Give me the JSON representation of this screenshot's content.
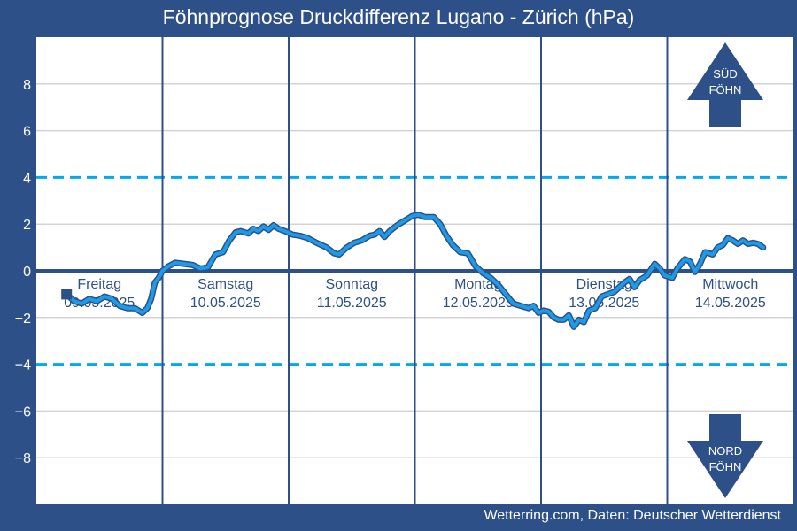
{
  "title": "Föhnprognose Druckdifferenz Lugano - Zürich (hPa)",
  "source": "Wetterring.com, Daten: Deutscher Wetterdienst",
  "colors": {
    "background": "#2d5088",
    "plot_background": "#ffffff",
    "series_line": "#1e9be6",
    "series_outline": "#2d5088",
    "threshold_line": "#00aaee",
    "zero_line": "#2d5088",
    "grid": "#d3d3d3"
  },
  "indicators": {
    "sued": {
      "line1": "SÜD",
      "line2": "FÖHN",
      "icon": "arrow-up-icon"
    },
    "nord": {
      "line1": "NORD",
      "line2": "FÖHN",
      "icon": "arrow-down-icon"
    }
  },
  "chart_data": {
    "type": "line",
    "title": "Föhnprognose Druckdifferenz Lugano - Zürich (hPa)",
    "xlabel": "",
    "ylabel": "",
    "ylim": [
      -10,
      10
    ],
    "xlim": [
      0,
      6
    ],
    "yticks": [
      8,
      6,
      4,
      2,
      0,
      -2,
      -4,
      -6,
      -8
    ],
    "ytick_labels": [
      "8",
      "6",
      "4",
      "2",
      "0",
      "−2",
      "−4",
      "−6",
      "−8"
    ],
    "grid": true,
    "thresholds": [
      4,
      -4
    ],
    "days": [
      {
        "name": "Freitag",
        "date": "09.05.2025"
      },
      {
        "name": "Samstag",
        "date": "10.05.2025"
      },
      {
        "name": "Sonntag",
        "date": "11.05.2025"
      },
      {
        "name": "Montag",
        "date": "12.05.2025"
      },
      {
        "name": "Dienstag",
        "date": "13.05.2025"
      },
      {
        "name": "Mittwoch",
        "date": "14.05.2025"
      }
    ],
    "series": [
      {
        "start_marker": [
          0.24,
          -1.0
        ],
        "points": [
          [
            0.24,
            -1.0
          ],
          [
            0.3,
            -1.3
          ],
          [
            0.36,
            -1.4
          ],
          [
            0.42,
            -1.2
          ],
          [
            0.48,
            -1.3
          ],
          [
            0.54,
            -1.1
          ],
          [
            0.6,
            -1.2
          ],
          [
            0.66,
            -1.5
          ],
          [
            0.72,
            -1.6
          ],
          [
            0.78,
            -1.6
          ],
          [
            0.84,
            -1.8
          ],
          [
            0.88,
            -1.6
          ],
          [
            0.91,
            -1.2
          ],
          [
            0.94,
            -0.5
          ],
          [
            0.97,
            -0.3
          ],
          [
            1.0,
            0.0
          ],
          [
            1.05,
            0.2
          ],
          [
            1.1,
            0.35
          ],
          [
            1.17,
            0.3
          ],
          [
            1.24,
            0.25
          ],
          [
            1.3,
            0.1
          ],
          [
            1.36,
            0.15
          ],
          [
            1.42,
            0.7
          ],
          [
            1.48,
            0.8
          ],
          [
            1.53,
            1.3
          ],
          [
            1.58,
            1.65
          ],
          [
            1.62,
            1.7
          ],
          [
            1.68,
            1.6
          ],
          [
            1.72,
            1.8
          ],
          [
            1.76,
            1.7
          ],
          [
            1.8,
            1.9
          ],
          [
            1.84,
            1.75
          ],
          [
            1.88,
            1.95
          ],
          [
            1.92,
            1.8
          ],
          [
            1.97,
            1.7
          ],
          [
            2.03,
            1.55
          ],
          [
            2.09,
            1.5
          ],
          [
            2.15,
            1.4
          ],
          [
            2.22,
            1.2
          ],
          [
            2.3,
            1.0
          ],
          [
            2.36,
            0.75
          ],
          [
            2.4,
            0.7
          ],
          [
            2.46,
            1.0
          ],
          [
            2.52,
            1.2
          ],
          [
            2.58,
            1.3
          ],
          [
            2.64,
            1.5
          ],
          [
            2.68,
            1.55
          ],
          [
            2.72,
            1.7
          ],
          [
            2.76,
            1.45
          ],
          [
            2.8,
            1.7
          ],
          [
            2.86,
            1.95
          ],
          [
            2.92,
            2.15
          ],
          [
            2.98,
            2.35
          ],
          [
            3.03,
            2.4
          ],
          [
            3.08,
            2.3
          ],
          [
            3.15,
            2.3
          ],
          [
            3.2,
            2.0
          ],
          [
            3.25,
            1.5
          ],
          [
            3.3,
            1.1
          ],
          [
            3.36,
            0.8
          ],
          [
            3.42,
            0.75
          ],
          [
            3.48,
            0.2
          ],
          [
            3.54,
            -0.1
          ],
          [
            3.6,
            -0.3
          ],
          [
            3.66,
            -0.6
          ],
          [
            3.72,
            -1.0
          ],
          [
            3.78,
            -1.4
          ],
          [
            3.84,
            -1.5
          ],
          [
            3.9,
            -1.6
          ],
          [
            3.94,
            -1.5
          ],
          [
            3.98,
            -1.8
          ],
          [
            4.02,
            -1.7
          ],
          [
            4.06,
            -1.75
          ],
          [
            4.1,
            -2.0
          ],
          [
            4.14,
            -2.1
          ],
          [
            4.18,
            -2.1
          ],
          [
            4.22,
            -1.9
          ],
          [
            4.26,
            -2.4
          ],
          [
            4.3,
            -2.1
          ],
          [
            4.34,
            -2.2
          ],
          [
            4.38,
            -1.7
          ],
          [
            4.43,
            -1.6
          ],
          [
            4.48,
            -1.1
          ],
          [
            4.53,
            -1.0
          ],
          [
            4.58,
            -0.9
          ],
          [
            4.62,
            -0.7
          ],
          [
            4.66,
            -0.5
          ],
          [
            4.7,
            -0.35
          ],
          [
            4.74,
            -0.7
          ],
          [
            4.78,
            -0.4
          ],
          [
            4.84,
            -0.2
          ],
          [
            4.9,
            0.3
          ],
          [
            4.94,
            0.1
          ],
          [
            4.98,
            -0.2
          ],
          [
            5.04,
            -0.3
          ],
          [
            5.08,
            0.1
          ],
          [
            5.14,
            0.5
          ],
          [
            5.18,
            0.4
          ],
          [
            5.22,
            -0.05
          ],
          [
            5.26,
            0.3
          ],
          [
            5.3,
            0.8
          ],
          [
            5.36,
            0.7
          ],
          [
            5.4,
            1.0
          ],
          [
            5.44,
            1.1
          ],
          [
            5.48,
            1.4
          ],
          [
            5.52,
            1.3
          ],
          [
            5.56,
            1.15
          ],
          [
            5.6,
            1.3
          ],
          [
            5.64,
            1.15
          ],
          [
            5.68,
            1.2
          ],
          [
            5.72,
            1.15
          ],
          [
            5.76,
            1.0
          ]
        ]
      }
    ]
  }
}
